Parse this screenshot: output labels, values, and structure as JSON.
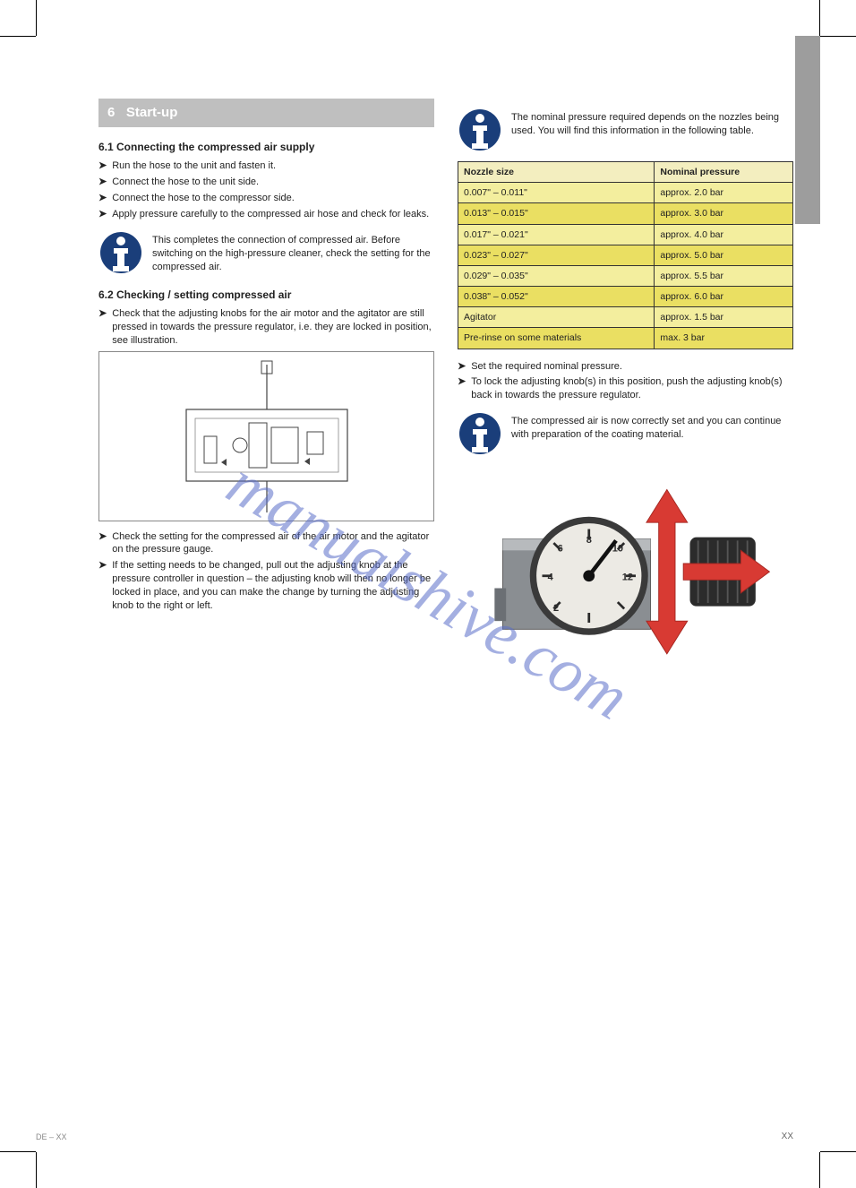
{
  "watermark": "manualshive.com",
  "left": {
    "section_number": "6",
    "section_title": "Start-up",
    "sub1_title": "6.1 Connecting the compressed air supply",
    "sub1_steps": [
      "Run the hose to the unit and fasten it.",
      "Connect the hose to the unit side.",
      "Connect the hose to the compressor side.",
      "Apply pressure carefully to the compressed air hose and check for leaks."
    ],
    "info1_bold": "This completes the connection of compressed air.",
    "info1_text": " Before switching on the high-pressure cleaner, check the setting for the compressed air.",
    "sub2_title": "6.2 Checking / setting compressed air",
    "bullet2_intro": "Check that the adjusting knobs for the air motor and the agitator are still pressed in towards the pressure regulator, i.e. they are locked in position, see illustration.",
    "bullet2_2": "Check the setting for the compressed air of the air motor and the agitator on the pressure gauge.",
    "bullet2_3": "If the setting needs to be changed, pull out the adjusting knob at the pressure controller in question – the adjusting knob will then no longer be locked in place, and you can make the change by turning the adjusting knob to the right or left."
  },
  "right": {
    "info_top": "The nominal pressure required depends on the nozzles being used. You will find this information in the following table.",
    "table": {
      "headers": [
        "Nozzle size",
        "Nominal pressure"
      ],
      "row_bg_even": "#f3ee9e",
      "row_bg_odd": "#eadf62",
      "rows": [
        [
          "0.007\" – 0.011\"",
          "approx. 2.0 bar"
        ],
        [
          "0.013\" – 0.015\"",
          "approx. 3.0 bar"
        ],
        [
          "0.017\" – 0.021\"",
          "approx. 4.0 bar"
        ],
        [
          "0.023\" – 0.027\"",
          "approx. 5.0 bar"
        ],
        [
          "0.029\" – 0.035\"",
          "approx. 5.5 bar"
        ],
        [
          "0.038\" – 0.052\"",
          "approx. 6.0 bar"
        ],
        [
          "Agitator",
          "approx. 1.5 bar"
        ],
        [
          "Pre-rinse on some materials",
          "max. 3 bar"
        ]
      ]
    },
    "bullet1": "Set the required nominal pressure.",
    "bullet2": "To lock the adjusting knob(s) in this position, push the adjusting knob(s) back in towards the pressure regulator.",
    "info_bottom": "The compressed air is now correctly set and you can continue with preparation of the coating material."
  },
  "colors": {
    "header_bg": "#bfbfbf",
    "info_icon_fill": "#1a3e7a",
    "gauge_body": "#6b6f74",
    "gauge_face": "#eceae4",
    "gauge_tick": "#2a2a2a",
    "arrow_red": "#d83a33",
    "arrow_red_dark": "#a32620"
  },
  "footer": {
    "left": "DE – XX",
    "right": "XX"
  }
}
